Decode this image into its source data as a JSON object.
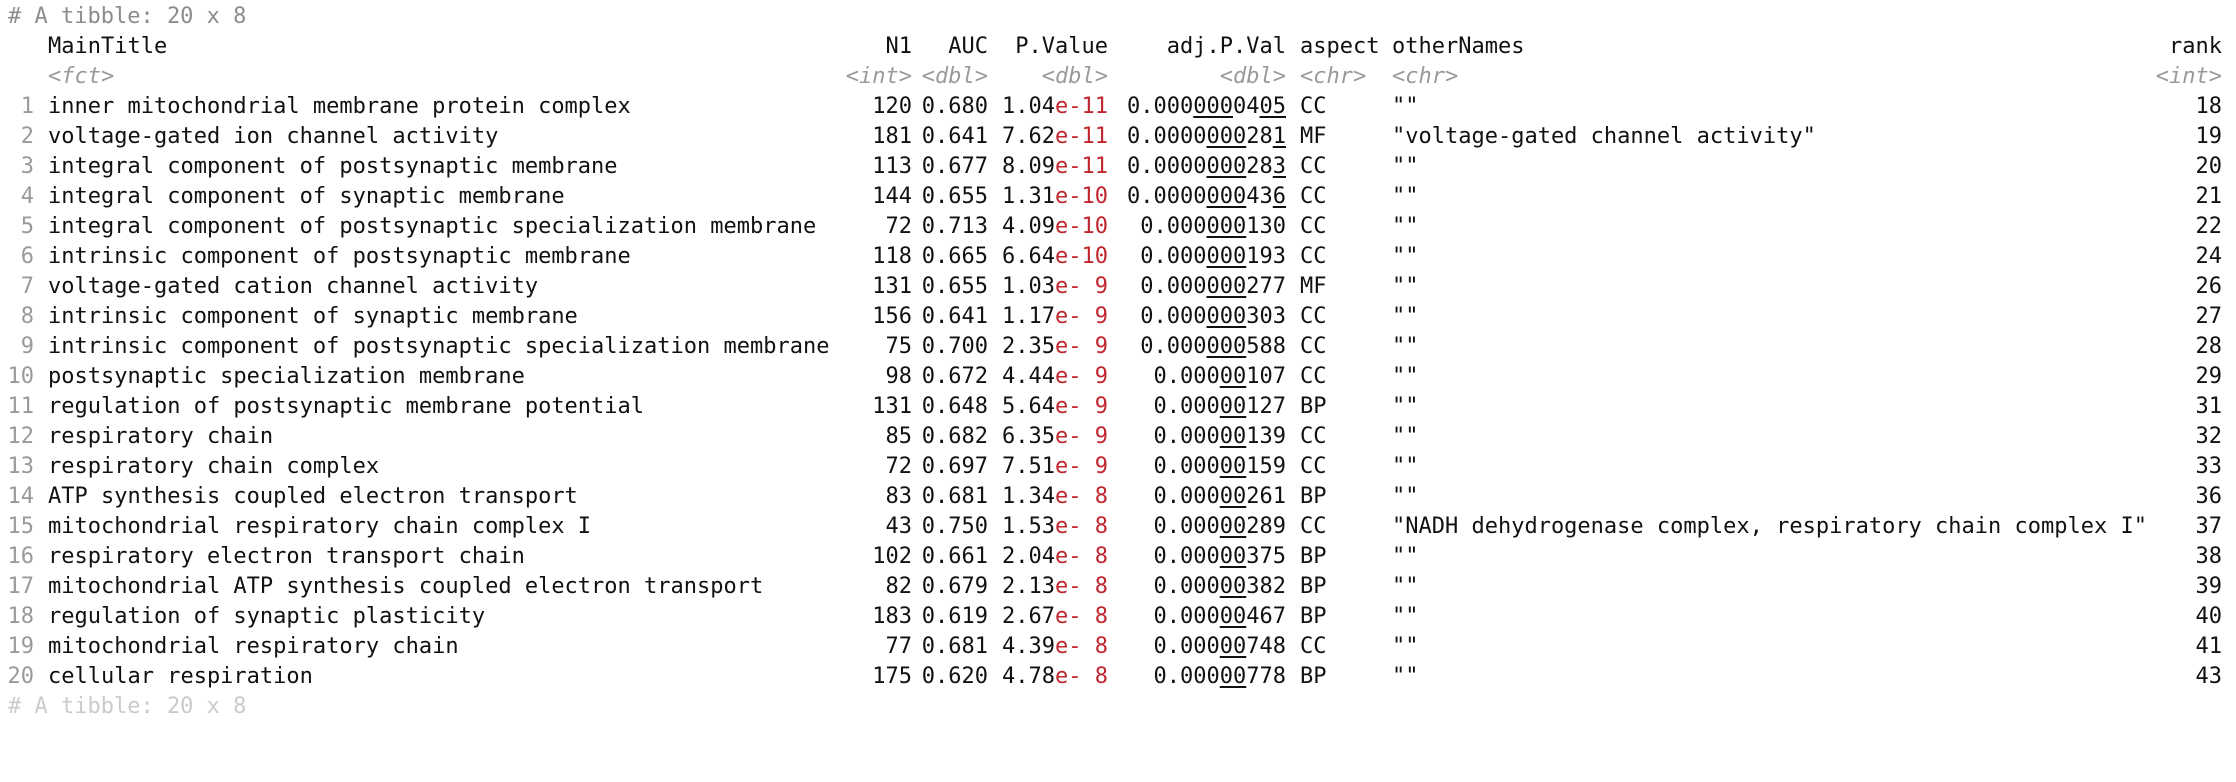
{
  "tibble": {
    "header_comment": "# A tibble: 20 x 8",
    "footer_comment": "# A tibble: 20 x 8",
    "columns": [
      {
        "name": "MainTitle",
        "type": "<fct>"
      },
      {
        "name": "N1",
        "type": "<int>"
      },
      {
        "name": "AUC",
        "type": "<dbl>"
      },
      {
        "name": "P.Value",
        "type": "<dbl>"
      },
      {
        "name": "adj.P.Val",
        "type": "<dbl>"
      },
      {
        "name": "aspect",
        "type": "<chr>"
      },
      {
        "name": "otherNames",
        "type": "<chr>"
      },
      {
        "name": "rank",
        "type": "<int>"
      }
    ],
    "rows": [
      {
        "n": "1",
        "title": "inner mitochondrial membrane protein complex",
        "N1": "120",
        "AUC": "0.680",
        "pv_mant": "1.04",
        "pv_exp": "e-11",
        "adj_a": "0.000",
        "adj_u1": "000",
        "adj_b": "04",
        "adj_u2": "05",
        "aspect": "CC",
        "other": "\"\"",
        "rank": "18"
      },
      {
        "n": "2",
        "title": "voltage-gated ion channel activity",
        "N1": "181",
        "AUC": "0.641",
        "pv_mant": "7.62",
        "pv_exp": "e-11",
        "adj_a": "0.0000",
        "adj_u1": "000",
        "adj_b": "28",
        "adj_u2": "1",
        "aspect": "MF",
        "other": "\"voltage-gated channel activity\"",
        "rank": "19"
      },
      {
        "n": "3",
        "title": "integral component of postsynaptic membrane",
        "N1": "113",
        "AUC": "0.677",
        "pv_mant": "8.09",
        "pv_exp": "e-11",
        "adj_a": "0.0000",
        "adj_u1": "000",
        "adj_b": "28",
        "adj_u2": "3",
        "aspect": "CC",
        "other": "\"\"",
        "rank": "20"
      },
      {
        "n": "4",
        "title": "integral component of synaptic membrane",
        "N1": "144",
        "AUC": "0.655",
        "pv_mant": "1.31",
        "pv_exp": "e-10",
        "adj_a": "0.0000",
        "adj_u1": "000",
        "adj_b": "43",
        "adj_u2": "6",
        "aspect": "CC",
        "other": "\"\"",
        "rank": "21"
      },
      {
        "n": "5",
        "title": "integral component of postsynaptic specialization membrane",
        "N1": "72",
        "AUC": "0.713",
        "pv_mant": "4.09",
        "pv_exp": "e-10",
        "adj_a": "0.000",
        "adj_u1": "000",
        "adj_b": "130",
        "adj_u2": "",
        "aspect": "CC",
        "other": "\"\"",
        "rank": "22"
      },
      {
        "n": "6",
        "title": "intrinsic component of postsynaptic membrane",
        "N1": "118",
        "AUC": "0.665",
        "pv_mant": "6.64",
        "pv_exp": "e-10",
        "adj_a": "0.000",
        "adj_u1": "000",
        "adj_b": "193",
        "adj_u2": "",
        "aspect": "CC",
        "other": "\"\"",
        "rank": "24"
      },
      {
        "n": "7",
        "title": "voltage-gated cation channel activity",
        "N1": "131",
        "AUC": "0.655",
        "pv_mant": "1.03",
        "pv_exp": "e- 9",
        "adj_a": "0.000",
        "adj_u1": "000",
        "adj_b": "277",
        "adj_u2": "",
        "aspect": "MF",
        "other": "\"\"",
        "rank": "26"
      },
      {
        "n": "8",
        "title": "intrinsic component of synaptic membrane",
        "N1": "156",
        "AUC": "0.641",
        "pv_mant": "1.17",
        "pv_exp": "e- 9",
        "adj_a": "0.000",
        "adj_u1": "000",
        "adj_b": "303",
        "adj_u2": "",
        "aspect": "CC",
        "other": "\"\"",
        "rank": "27"
      },
      {
        "n": "9",
        "title": "intrinsic component of postsynaptic specialization membrane",
        "N1": "75",
        "AUC": "0.700",
        "pv_mant": "2.35",
        "pv_exp": "e- 9",
        "adj_a": "0.000",
        "adj_u1": "000",
        "adj_b": "588",
        "adj_u2": "",
        "aspect": "CC",
        "other": "\"\"",
        "rank": "28"
      },
      {
        "n": "10",
        "title": "postsynaptic specialization membrane",
        "N1": "98",
        "AUC": "0.672",
        "pv_mant": "4.44",
        "pv_exp": "e- 9",
        "adj_a": "0.000",
        "adj_u1": "00",
        "adj_b": "107",
        "adj_u2": "",
        "aspect": "CC",
        "other": "\"\"",
        "rank": "29"
      },
      {
        "n": "11",
        "title": "regulation of postsynaptic membrane potential",
        "N1": "131",
        "AUC": "0.648",
        "pv_mant": "5.64",
        "pv_exp": "e- 9",
        "adj_a": "0.000",
        "adj_u1": "00",
        "adj_b": "127",
        "adj_u2": "",
        "aspect": "BP",
        "other": "\"\"",
        "rank": "31"
      },
      {
        "n": "12",
        "title": "respiratory chain",
        "N1": "85",
        "AUC": "0.682",
        "pv_mant": "6.35",
        "pv_exp": "e- 9",
        "adj_a": "0.000",
        "adj_u1": "00",
        "adj_b": "139",
        "adj_u2": "",
        "aspect": "CC",
        "other": "\"\"",
        "rank": "32"
      },
      {
        "n": "13",
        "title": "respiratory chain complex",
        "N1": "72",
        "AUC": "0.697",
        "pv_mant": "7.51",
        "pv_exp": "e- 9",
        "adj_a": "0.000",
        "adj_u1": "00",
        "adj_b": "159",
        "adj_u2": "",
        "aspect": "CC",
        "other": "\"\"",
        "rank": "33"
      },
      {
        "n": "14",
        "title": "ATP synthesis coupled electron transport",
        "N1": "83",
        "AUC": "0.681",
        "pv_mant": "1.34",
        "pv_exp": "e- 8",
        "adj_a": "0.000",
        "adj_u1": "00",
        "adj_b": "261",
        "adj_u2": "",
        "aspect": "BP",
        "other": "\"\"",
        "rank": "36"
      },
      {
        "n": "15",
        "title": "mitochondrial respiratory chain complex I",
        "N1": "43",
        "AUC": "0.750",
        "pv_mant": "1.53",
        "pv_exp": "e- 8",
        "adj_a": "0.000",
        "adj_u1": "00",
        "adj_b": "289",
        "adj_u2": "",
        "aspect": "CC",
        "other": "\"NADH dehydrogenase complex, respiratory chain complex I\"",
        "rank": "37"
      },
      {
        "n": "16",
        "title": "respiratory electron transport chain",
        "N1": "102",
        "AUC": "0.661",
        "pv_mant": "2.04",
        "pv_exp": "e- 8",
        "adj_a": "0.000",
        "adj_u1": "00",
        "adj_b": "375",
        "adj_u2": "",
        "aspect": "BP",
        "other": "\"\"",
        "rank": "38"
      },
      {
        "n": "17",
        "title": "mitochondrial ATP synthesis coupled electron transport",
        "N1": "82",
        "AUC": "0.679",
        "pv_mant": "2.13",
        "pv_exp": "e- 8",
        "adj_a": "0.000",
        "adj_u1": "00",
        "adj_b": "382",
        "adj_u2": "",
        "aspect": "BP",
        "other": "\"\"",
        "rank": "39"
      },
      {
        "n": "18",
        "title": "regulation of synaptic plasticity",
        "N1": "183",
        "AUC": "0.619",
        "pv_mant": "2.67",
        "pv_exp": "e- 8",
        "adj_a": "0.000",
        "adj_u1": "00",
        "adj_b": "467",
        "adj_u2": "",
        "aspect": "BP",
        "other": "\"\"",
        "rank": "40"
      },
      {
        "n": "19",
        "title": "mitochondrial respiratory chain",
        "N1": "77",
        "AUC": "0.681",
        "pv_mant": "4.39",
        "pv_exp": "e- 8",
        "adj_a": "0.000",
        "adj_u1": "00",
        "adj_b": "748",
        "adj_u2": "",
        "aspect": "CC",
        "other": "\"\"",
        "rank": "41"
      },
      {
        "n": "20",
        "title": "cellular respiration",
        "N1": "175",
        "AUC": "0.620",
        "pv_mant": "4.78",
        "pv_exp": "e- 8",
        "adj_a": "0.000",
        "adj_u1": "00",
        "adj_b": "778",
        "adj_u2": "",
        "aspect": "BP",
        "other": "\"\"",
        "rank": "43"
      }
    ]
  },
  "colors": {
    "exponent": "#c0262d",
    "muted": "#9a9a9a",
    "text": "#111111"
  }
}
